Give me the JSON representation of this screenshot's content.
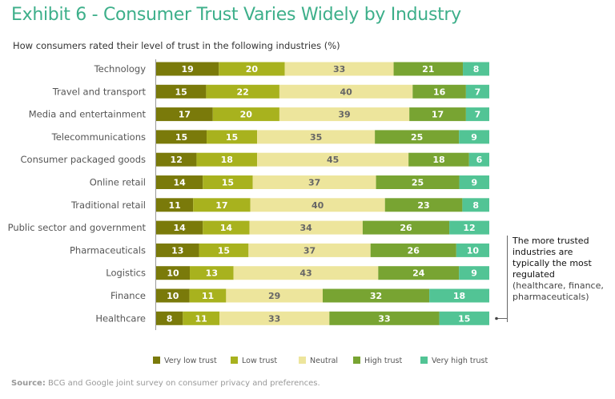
{
  "title": "Exhibit 6 - Consumer Trust Varies Widely by Industry",
  "subtitle": "How consumers rated their level of trust in the following industries (%)",
  "annotation": {
    "main": "The more trusted industries are typically the most regulated",
    "sub": "(healthcare, finance, pharmaceuticals)"
  },
  "source": {
    "label": "Source:",
    "text": " BCG and Google joint survey on consumer privacy and preferences."
  },
  "chart_data": {
    "type": "bar",
    "orientation": "horizontal",
    "stacked": true,
    "title": "Exhibit 6 - Consumer Trust Varies Widely by Industry",
    "subtitle": "How consumers rated their level of trust in the following industries (%)",
    "xlabel": "",
    "ylabel": "",
    "xlim": [
      0,
      100
    ],
    "grid": false,
    "legend_position": "bottom",
    "categories": [
      "Technology",
      "Travel and transport",
      "Media and entertainment",
      "Telecommunications",
      "Consumer packaged goods",
      "Online retail",
      "Traditional retail",
      "Public sector and government",
      "Pharmaceuticals",
      "Logistics",
      "Finance",
      "Healthcare"
    ],
    "series": [
      {
        "name": "Very low trust",
        "color": "#7a7a0a",
        "label_color": "#ffffff",
        "values": [
          19,
          15,
          17,
          15,
          12,
          14,
          11,
          14,
          13,
          10,
          10,
          8
        ]
      },
      {
        "name": "Low trust",
        "color": "#a8b21e",
        "label_color": "#ffffff",
        "values": [
          20,
          22,
          20,
          15,
          18,
          15,
          17,
          14,
          15,
          13,
          11,
          11
        ]
      },
      {
        "name": "Neutral",
        "color": "#ede59c",
        "label_color": "#666666",
        "values": [
          33,
          40,
          39,
          35,
          45,
          37,
          40,
          34,
          37,
          43,
          29,
          33
        ]
      },
      {
        "name": "High trust",
        "color": "#78a432",
        "label_color": "#ffffff",
        "values": [
          21,
          16,
          17,
          25,
          18,
          25,
          23,
          26,
          26,
          24,
          32,
          33
        ]
      },
      {
        "name": "Very high trust",
        "color": "#52c495",
        "label_color": "#ffffff",
        "values": [
          8,
          7,
          7,
          9,
          6,
          9,
          8,
          12,
          10,
          9,
          18,
          15
        ]
      }
    ]
  }
}
